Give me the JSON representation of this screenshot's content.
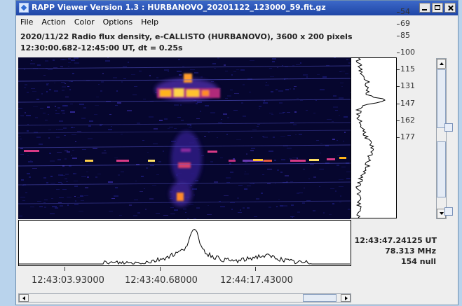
{
  "window": {
    "title": "RAPP Viewer Version 1.3 : HURBANOVO_20201122_123000_59.fit.gz"
  },
  "menu": [
    "File",
    "Action",
    "Color",
    "Options",
    "Help"
  ],
  "header": {
    "line1": "2020/11/22  Radio flux density, e-CALLISTO (HURBANOVO),  3600 x 200 pixels",
    "line2": "12:30:00.682-12:45:00 UT,  dt = 0.25s"
  },
  "frequency_axis": {
    "ticks": [
      "54",
      "69",
      "85",
      "100",
      "115",
      "131",
      "147",
      "162",
      "177"
    ]
  },
  "time_axis": {
    "ticks": [
      "12:43:03.93000",
      "12:43:40.68000",
      "12:44:17.43000"
    ]
  },
  "cursor_readout": {
    "time": "12:43:47.24125 UT",
    "frequency": "78.313 MHz",
    "value": "154 null"
  },
  "colors": {
    "spectrogram_bg": "#05052a",
    "accent": "#2f6bd4"
  }
}
